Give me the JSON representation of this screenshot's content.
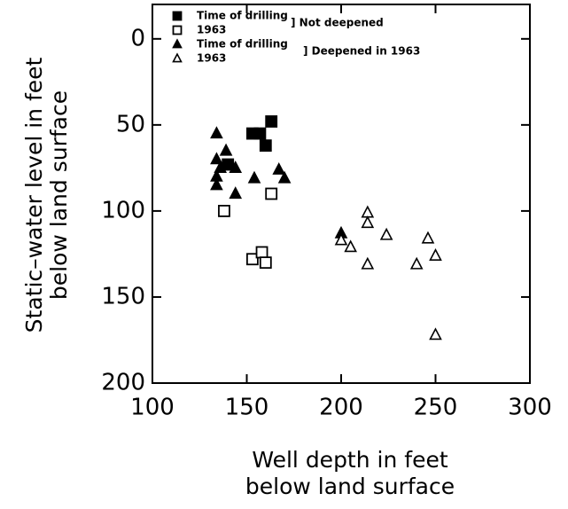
{
  "chart_data": {
    "type": "scatter",
    "xlabel": [
      "Well depth in feet",
      "below land surface"
    ],
    "ylabel": [
      "Static–water level in feet",
      "below land surface"
    ],
    "xlim": [
      100,
      300
    ],
    "xticks": [
      100,
      150,
      200,
      250,
      300
    ],
    "ylim": [
      -20,
      200
    ],
    "yticks": [
      0,
      50,
      100,
      150,
      200
    ],
    "y_inverted": true,
    "legend_groups": [
      "] Not deepened",
      "] Deepened in 1963"
    ],
    "series": [
      {
        "name": "Time of drilling",
        "marker": "square",
        "filled": true,
        "color": "#000000",
        "group": 0,
        "x": [
          140,
          153,
          157,
          160,
          163
        ],
        "values": [
          73,
          55,
          55,
          62,
          48
        ]
      },
      {
        "name": "1963",
        "marker": "square",
        "filled": false,
        "color": "#000000",
        "group": 0,
        "x": [
          138,
          153,
          158,
          160,
          163
        ],
        "values": [
          100,
          128,
          124,
          130,
          90
        ]
      },
      {
        "name": "Time of drilling",
        "marker": "triangle",
        "filled": true,
        "color": "#000000",
        "group": 1,
        "x": [
          134,
          134,
          134,
          134,
          136,
          139,
          144,
          144,
          154,
          167,
          170,
          200
        ],
        "values": [
          55,
          70,
          80,
          85,
          75,
          65,
          75,
          90,
          81,
          76,
          81,
          113
        ]
      },
      {
        "name": "1963",
        "marker": "triangle",
        "filled": false,
        "color": "#000000",
        "group": 1,
        "x": [
          200,
          205,
          214,
          214,
          214,
          224,
          240,
          246,
          250,
          250
        ],
        "values": [
          117,
          121,
          101,
          107,
          131,
          114,
          131,
          116,
          126,
          172
        ]
      }
    ]
  }
}
